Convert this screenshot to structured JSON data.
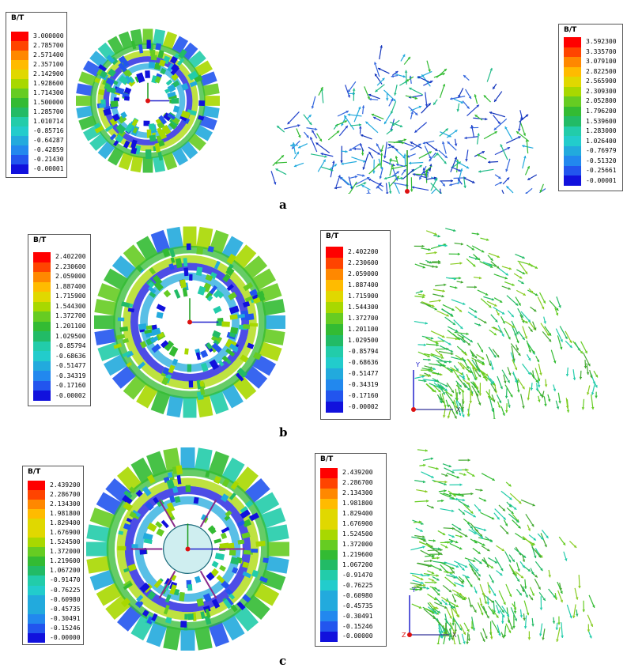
{
  "palette": [
    "#ff0000",
    "#ff4400",
    "#ff8800",
    "#ffbb00",
    "#e0d800",
    "#a8d800",
    "#66cc22",
    "#33bb33",
    "#22bb66",
    "#22ccaa",
    "#22cccc",
    "#22aadd",
    "#2288ee",
    "#2255ee",
    "#1111dd"
  ],
  "panels": [
    {
      "label": "a",
      "left_legend": {
        "title": "B/T",
        "values": [
          "3.000000",
          "2.785700",
          "2.571400",
          "2.357100",
          "2.142900",
          "1.928600",
          "1.714300",
          "1.500000",
          "1.285700",
          "1.010714",
          "-0.85716",
          "-0.64287",
          "-0.42859",
          "-0.21430",
          "-0.00001"
        ]
      },
      "right_legend": {
        "title": "B/T",
        "values": [
          "3.592300",
          "3.335700",
          "3.079100",
          "2.822500",
          "2.565900",
          "2.309300",
          "2.052800",
          "1.796200",
          "1.539600",
          "1.283000",
          "1.026400",
          "-0.76979",
          "-0.51320",
          "-0.25661",
          "-0.00001"
        ]
      },
      "axis_labels": {
        "x": "",
        "y": "",
        "z": ""
      }
    },
    {
      "label": "b",
      "left_legend": {
        "title": "B/T",
        "values": [
          "2.402200",
          "2.230600",
          "2.059000",
          "1.887400",
          "1.715900",
          "1.544300",
          "1.372700",
          "1.201100",
          "1.029500",
          "-0.85794",
          "-0.68636",
          "-0.51477",
          "-0.34319",
          "-0.17160",
          "-0.00002"
        ]
      },
      "right_legend": {
        "title": "B/T",
        "values": [
          "2.402200",
          "2.230600",
          "2.059000",
          "1.887400",
          "1.715900",
          "1.544300",
          "1.372700",
          "1.201100",
          "1.029500",
          "-0.85794",
          "-0.68636",
          "-0.51477",
          "-0.34319",
          "-0.17160",
          "-0.00002"
        ]
      },
      "axis_labels": {
        "x": "X",
        "y": "Y",
        "z": ""
      }
    },
    {
      "label": "c",
      "left_legend": {
        "title": "B/T",
        "values": [
          "2.439200",
          "2.286700",
          "2.134300",
          "1.981800",
          "1.829400",
          "1.676900",
          "1.524500",
          "1.372000",
          "1.219600",
          "1.067200",
          "-0.91470",
          "-0.76225",
          "-0.60980",
          "-0.45735",
          "-0.30491",
          "-0.15246",
          "-0.00000"
        ]
      },
      "right_legend": {
        "title": "B/T",
        "values": [
          "2.439200",
          "2.286700",
          "2.134300",
          "1.981800",
          "1.829400",
          "1.676900",
          "1.524500",
          "1.372000",
          "1.219600",
          "1.067200",
          "-0.91470",
          "-0.76225",
          "-0.60980",
          "-0.45735",
          "-0.30491",
          "-0.15246",
          "-0.00000"
        ]
      },
      "axis_labels": {
        "x": "X",
        "y": "Y",
        "z": "Z"
      }
    }
  ]
}
